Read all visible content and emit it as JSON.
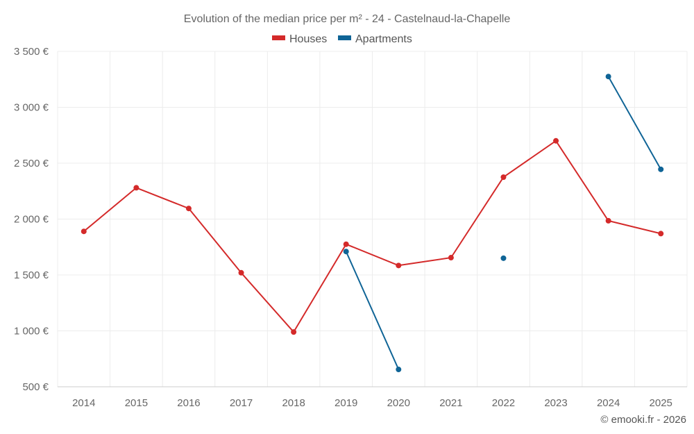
{
  "chart_data": {
    "type": "line",
    "title": "Evolution of the median price per m² - 24 - Castelnaud-la-Chapelle",
    "categories": [
      "2014",
      "2015",
      "2016",
      "2017",
      "2018",
      "2019",
      "2020",
      "2021",
      "2022",
      "2023",
      "2024",
      "2025"
    ],
    "series": [
      {
        "name": "Houses",
        "color": "#d42a2a",
        "values": [
          1890,
          2280,
          2095,
          1520,
          990,
          1775,
          1585,
          1655,
          2375,
          2700,
          1985,
          1870
        ]
      },
      {
        "name": "Apartments",
        "color": "#0f6496",
        "values": [
          null,
          null,
          null,
          null,
          null,
          1710,
          655,
          null,
          1650,
          null,
          3275,
          2445
        ]
      }
    ],
    "ylim": [
      500,
      3500
    ],
    "yticks": [
      500,
      1000,
      1500,
      2000,
      2500,
      3000,
      3500
    ],
    "ytick_labels": [
      "500 €",
      "1 000 €",
      "1 500 €",
      "2 000 €",
      "2 500 €",
      "3 000 €",
      "3 500 €"
    ],
    "legend": "top-center",
    "grid": true
  },
  "credit": "© emooki.fr - 2026"
}
